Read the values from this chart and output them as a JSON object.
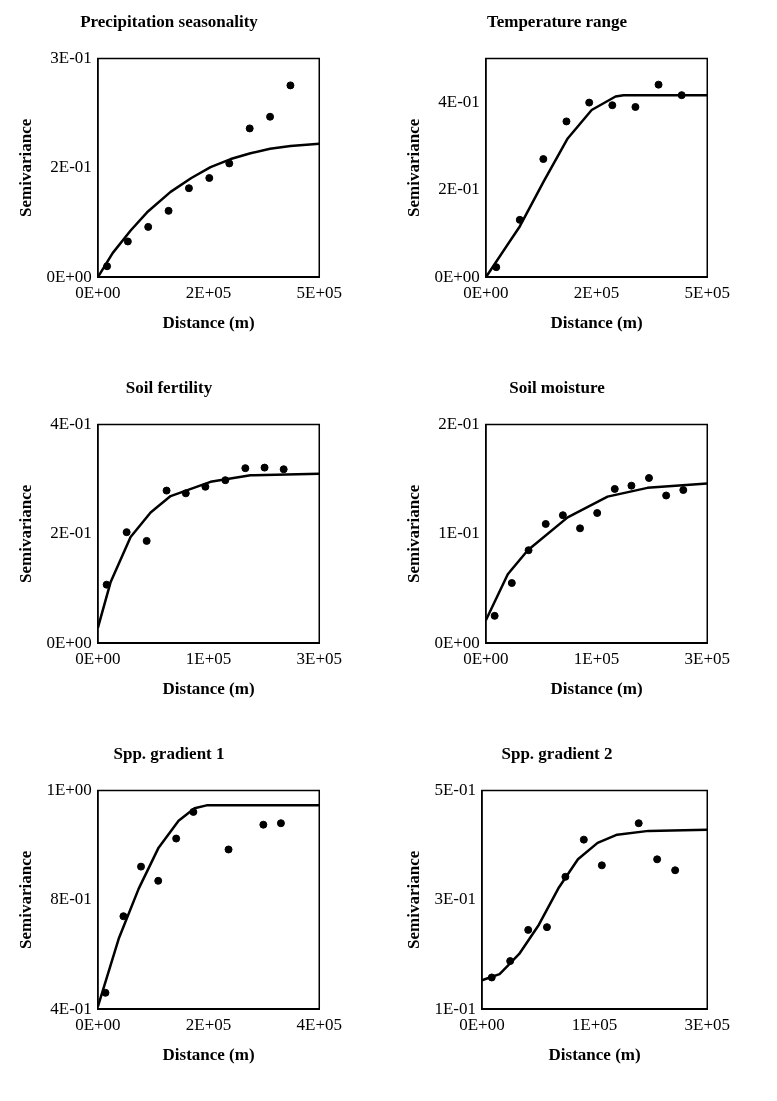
{
  "chart_data": [
    {
      "type": "scatter",
      "title": "Precipitation seasonality",
      "xlabel": "Distance (m)",
      "ylabel": "Semivariance",
      "xlim": [
        0,
        450000
      ],
      "xticks": [
        {
          "value": 0,
          "label": "0E+00"
        },
        {
          "value": 225000,
          "label": "2E+05"
        },
        {
          "value": 450000,
          "label": "5E+05"
        }
      ],
      "ylim": [
        0,
        0.3
      ],
      "yticks": [
        {
          "value": 0,
          "label": "0E+00"
        },
        {
          "value": 0.15,
          "label": "2E-01"
        },
        {
          "value": 0.3,
          "label": "3E-01"
        }
      ],
      "series": [
        {
          "color": "#000000",
          "marker": "circle",
          "x": [
            18700,
            60900,
            102300,
            143700,
            185100,
            226500,
            267100,
            308600,
            350000,
            391400
          ],
          "values": [
            0.015,
            0.049,
            0.069,
            0.091,
            0.122,
            0.136,
            0.156,
            0.204,
            0.22,
            0.263
          ]
        },
        {
          "type": "line",
          "color": "#000000",
          "marker": "none",
          "x": [
            0,
            30000,
            66600,
            100000,
            147800,
            190000,
            229000,
            270000,
            310200,
            350000,
            391400,
            450000
          ],
          "values": [
            0,
            0.033,
            0.064,
            0.089,
            0.117,
            0.136,
            0.151,
            0.162,
            0.17,
            0.176,
            0.18,
            0.183
          ]
        }
      ]
    },
    {
      "type": "scatter",
      "title": "Temperature range",
      "xlabel": "Distance (m)",
      "ylabel": "Semivariance",
      "xlim": [
        0,
        450000
      ],
      "xticks": [
        {
          "value": 0,
          "label": "0E+00"
        },
        {
          "value": 225000,
          "label": "2E+05"
        },
        {
          "value": 450000,
          "label": "5E+05"
        }
      ],
      "ylim": [
        0,
        0.5
      ],
      "yticks": [
        {
          "value": 0,
          "label": "0E+00"
        },
        {
          "value": 0.2,
          "label": "2E-01"
        },
        {
          "value": 0.4,
          "label": "4E-01"
        }
      ],
      "series": [
        {
          "color": "#000000",
          "marker": "circle",
          "x": [
            21100,
            68900,
            116800,
            163800,
            210000,
            257000,
            304000,
            351000,
            398000
          ],
          "values": [
            0.023,
            0.131,
            0.27,
            0.356,
            0.399,
            0.393,
            0.389,
            0.44,
            0.416
          ]
        },
        {
          "type": "line",
          "color": "#000000",
          "marker": "none",
          "x": [
            0,
            68900,
            117600,
            166300,
            215000,
            263600,
            279800,
            450000
          ],
          "values": [
            0,
            0.116,
            0.219,
            0.317,
            0.382,
            0.413,
            0.416,
            0.416
          ]
        }
      ]
    },
    {
      "type": "scatter",
      "title": "Soil fertility",
      "xlabel": "Distance (m)",
      "ylabel": "Semivariance",
      "xlim": [
        0,
        280000
      ],
      "xticks": [
        {
          "value": 0,
          "label": "0E+00"
        },
        {
          "value": 140000,
          "label": "1E+05"
        },
        {
          "value": 280000,
          "label": "3E+05"
        }
      ],
      "ylim": [
        0,
        0.4
      ],
      "yticks": [
        {
          "value": 0,
          "label": "0E+00"
        },
        {
          "value": 0.2,
          "label": "2E-01"
        },
        {
          "value": 0.4,
          "label": "4E-01"
        }
      ],
      "series": [
        {
          "color": "#000000",
          "marker": "circle",
          "x": [
            11100,
            36400,
            61700,
            86900,
            111200,
            136000,
            161200,
            186500,
            210800,
            235000
          ],
          "values": [
            0.107,
            0.203,
            0.187,
            0.279,
            0.274,
            0.286,
            0.298,
            0.32,
            0.321,
            0.318
          ]
        },
        {
          "type": "line",
          "color": "#000000",
          "marker": "none",
          "x": [
            0,
            16200,
            41400,
            66700,
            92000,
            142500,
            193000,
            280000
          ],
          "values": [
            0.028,
            0.112,
            0.194,
            0.239,
            0.269,
            0.295,
            0.307,
            0.31
          ]
        }
      ]
    },
    {
      "type": "scatter",
      "title": "Soil moisture",
      "xlabel": "Distance (m)",
      "ylabel": "Semivariance",
      "xlim": [
        0,
        280000
      ],
      "xticks": [
        {
          "value": 0,
          "label": "0E+00"
        },
        {
          "value": 140000,
          "label": "1E+05"
        },
        {
          "value": 280000,
          "label": "3E+05"
        }
      ],
      "ylim": [
        0,
        0.2
      ],
      "yticks": [
        {
          "value": 0,
          "label": "0E+00"
        },
        {
          "value": 0.1,
          "label": "1E-01"
        },
        {
          "value": 0.2,
          "label": "2E-01"
        }
      ],
      "series": [
        {
          "color": "#000000",
          "marker": "circle",
          "x": [
            11100,
            32800,
            54000,
            75700,
            97400,
            119100,
            140800,
            163000,
            184100,
            206300,
            228000,
            249700
          ],
          "values": [
            0.025,
            0.055,
            0.085,
            0.109,
            0.117,
            0.105,
            0.119,
            0.141,
            0.144,
            0.151,
            0.135,
            0.14
          ]
        },
        {
          "type": "line",
          "color": "#000000",
          "marker": "none",
          "x": [
            0,
            27700,
            53000,
            103400,
            153900,
            204300,
            280000
          ],
          "values": [
            0.021,
            0.063,
            0.085,
            0.115,
            0.134,
            0.142,
            0.146
          ]
        }
      ]
    },
    {
      "type": "scatter",
      "title": "Spp. gradient 1",
      "xlabel": "Distance (m)",
      "ylabel": "Semivariance",
      "xlim": [
        0,
        350000
      ],
      "xticks": [
        {
          "value": 0,
          "label": "0E+00"
        },
        {
          "value": 175000,
          "label": "2E+05"
        },
        {
          "value": 350000,
          "label": "4E+05"
        }
      ],
      "ylim": [
        0.45,
        1.05
      ],
      "yticks": [
        {
          "value": 0.45,
          "label": "4E-01"
        },
        {
          "value": 0.75,
          "label": "8E-01"
        },
        {
          "value": 1.05,
          "label": "1E+00"
        }
      ],
      "series": [
        {
          "color": "#000000",
          "marker": "circle",
          "x": [
            12000,
            40400,
            68200,
            95400,
            123800,
            151000,
            206600,
            261600,
            289400
          ],
          "values": [
            0.495,
            0.705,
            0.841,
            0.802,
            0.918,
            0.991,
            0.888,
            0.956,
            0.96
          ]
        },
        {
          "type": "line",
          "color": "#000000",
          "marker": "none",
          "x": [
            0,
            32900,
            64400,
            96000,
            127600,
            152900,
            171900,
            350000
          ],
          "values": [
            0.457,
            0.643,
            0.78,
            0.893,
            0.967,
            1.001,
            1.009,
            1.009
          ]
        }
      ]
    },
    {
      "type": "scatter",
      "title": "Spp. gradient 2",
      "xlabel": "Distance (m)",
      "ylabel": "Semivariance",
      "xlim": [
        0,
        280000
      ],
      "xticks": [
        {
          "value": 0,
          "label": "0E+00"
        },
        {
          "value": 140000,
          "label": "1E+05"
        },
        {
          "value": 280000,
          "label": "3E+05"
        }
      ],
      "ylim": [
        0.1,
        0.5
      ],
      "yticks": [
        {
          "value": 0.1,
          "label": "1E-01"
        },
        {
          "value": 0.3,
          "label": "3E-01"
        },
        {
          "value": 0.5,
          "label": "5E-01"
        }
      ],
      "series": [
        {
          "color": "#000000",
          "marker": "circle",
          "x": [
            12200,
            35100,
            57500,
            80800,
            103700,
            126600,
            149000,
            194800,
            217700,
            240100
          ],
          "values": [
            0.158,
            0.188,
            0.245,
            0.25,
            0.342,
            0.41,
            0.363,
            0.44,
            0.374,
            0.354
          ]
        },
        {
          "type": "line",
          "color": "#000000",
          "marker": "none",
          "x": [
            0,
            21900,
            46300,
            70600,
            95000,
            119300,
            143700,
            168000,
            207000,
            280000
          ],
          "values": [
            0.153,
            0.164,
            0.201,
            0.254,
            0.321,
            0.374,
            0.404,
            0.419,
            0.426,
            0.428
          ]
        }
      ]
    }
  ]
}
